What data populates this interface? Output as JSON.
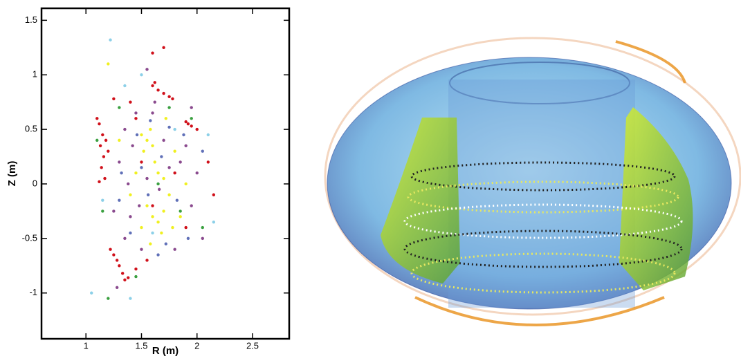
{
  "chart_data": {
    "type": "scatter",
    "xlabel": "R (m)",
    "ylabel": "Z (m)",
    "xlim": [
      0.6,
      2.83
    ],
    "ylim": [
      -1.42,
      1.61
    ],
    "xticks": [
      1,
      1.5,
      2,
      2.5
    ],
    "yticks": [
      1.5,
      1,
      0.5,
      0,
      -0.5,
      -1
    ],
    "series": [
      {
        "color": "#d0101a",
        "x": [
          1.12,
          1.15,
          1.13,
          1.16,
          1.14,
          1.17,
          1.12,
          1.18,
          1.2,
          1.1,
          1.6,
          1.65,
          1.7,
          1.75,
          1.78,
          1.62,
          1.9,
          1.95,
          1.92,
          2.0,
          1.22,
          1.28,
          1.3,
          1.33,
          1.35,
          1.38,
          1.25,
          1.45,
          1.55,
          1.6,
          1.7,
          1.45,
          1.5,
          1.6,
          1.8,
          1.9,
          2.1,
          2.15,
          1.4,
          1.25
        ],
        "values": [
          0.55,
          0.45,
          0.35,
          0.25,
          0.15,
          0.05,
          0.02,
          0.4,
          0.3,
          0.6,
          0.9,
          0.86,
          0.83,
          0.8,
          0.78,
          0.93,
          0.57,
          0.53,
          0.55,
          0.5,
          -0.6,
          -0.7,
          -0.75,
          -0.82,
          -0.88,
          -0.86,
          -0.65,
          -0.78,
          -0.7,
          1.2,
          1.25,
          0.6,
          0.2,
          -0.2,
          0.1,
          -0.4,
          0.2,
          -0.1,
          0.75,
          0.78
        ]
      },
      {
        "color": "#f0f020",
        "x": [
          1.5,
          1.55,
          1.6,
          1.52,
          1.58,
          1.65,
          1.7,
          1.55,
          1.6,
          1.65,
          1.7,
          1.5,
          1.75,
          1.8,
          1.85,
          1.45,
          1.62,
          1.68,
          1.2,
          1.72,
          1.4,
          1.9,
          1.3,
          1.58,
          1.78
        ],
        "values": [
          0.45,
          0.4,
          0.35,
          0.3,
          0.5,
          0.1,
          0.05,
          -0.2,
          -0.3,
          -0.35,
          -0.25,
          -0.4,
          -0.1,
          0.3,
          -0.3,
          0.1,
          0.2,
          -0.45,
          1.1,
          0.6,
          -0.1,
          0.0,
          0.4,
          -0.55,
          -0.4
        ]
      },
      {
        "color": "#8a4a8e",
        "x": [
          1.3,
          1.35,
          1.4,
          1.45,
          1.6,
          1.7,
          1.85,
          1.95,
          2.05,
          1.5,
          1.38,
          1.42,
          1.8,
          1.9,
          2.0,
          1.25,
          1.48,
          1.66,
          1.75,
          1.55,
          1.35,
          1.95,
          1.55,
          1.28,
          1.62
        ],
        "values": [
          0.2,
          0.5,
          -0.3,
          0.65,
          0.65,
          0.4,
          0.2,
          -0.2,
          -0.5,
          -0.6,
          0.0,
          0.35,
          -0.6,
          0.35,
          0.1,
          -0.25,
          -0.2,
          -0.05,
          0.15,
          0.05,
          -0.5,
          0.7,
          1.05,
          -0.95,
          0.75
        ]
      },
      {
        "color": "#6070b8",
        "x": [
          1.32,
          1.46,
          1.56,
          1.68,
          1.82,
          1.88,
          1.72,
          1.4,
          1.58,
          2.05,
          1.3,
          1.92,
          1.5,
          1.65,
          1.75
        ],
        "values": [
          0.1,
          0.45,
          -0.1,
          0.25,
          -0.15,
          0.45,
          -0.55,
          -0.45,
          0.58,
          0.3,
          -0.15,
          -0.5,
          0.15,
          -0.65,
          0.52
        ]
      },
      {
        "color": "#3aa040",
        "x": [
          1.1,
          1.3,
          1.75,
          1.95,
          2.05,
          1.15,
          1.45,
          1.2,
          1.65,
          1.85
        ],
        "values": [
          0.4,
          0.7,
          0.7,
          0.6,
          -0.4,
          -0.25,
          -0.85,
          -1.05,
          0.0,
          -0.25
        ]
      },
      {
        "color": "#8cd0e8",
        "x": [
          1.22,
          1.4,
          1.15,
          2.1,
          1.6,
          1.35,
          2.15,
          1.8,
          1.05,
          1.5
        ],
        "values": [
          1.32,
          -1.05,
          -0.15,
          0.45,
          -0.45,
          0.9,
          -0.35,
          0.5,
          -1.0,
          1.0
        ]
      }
    ]
  }
}
